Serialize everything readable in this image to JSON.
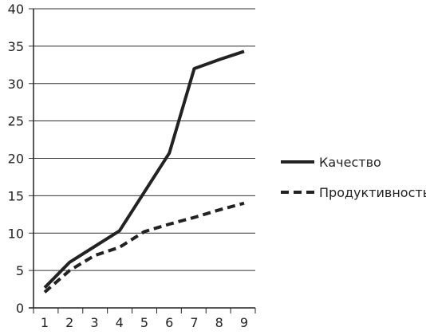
{
  "chart_data": {
    "type": "line",
    "title": "",
    "xlabel": "",
    "ylabel": "",
    "x": [
      1,
      2,
      3,
      4,
      5,
      6,
      7,
      8,
      9
    ],
    "xlim": [
      1,
      9
    ],
    "ylim": [
      0,
      40
    ],
    "y_ticks": [
      0,
      5,
      10,
      15,
      20,
      25,
      30,
      35,
      40
    ],
    "x_ticks": [
      1,
      2,
      3,
      4,
      5,
      6,
      7,
      8,
      9
    ],
    "grid": "horizontal",
    "legend_position": "right",
    "series": [
      {
        "name": "Качество",
        "style": "solid",
        "color": "#222222",
        "values": [
          2.7,
          6.1,
          8.2,
          10.3,
          15.5,
          20.7,
          32.0,
          33.2,
          34.3
        ]
      },
      {
        "name": "Продуктивность",
        "style": "dashed",
        "color": "#222222",
        "values": [
          2.1,
          5.0,
          7.0,
          8.1,
          10.2,
          11.2,
          12.1,
          13.1,
          14.0
        ]
      }
    ]
  }
}
